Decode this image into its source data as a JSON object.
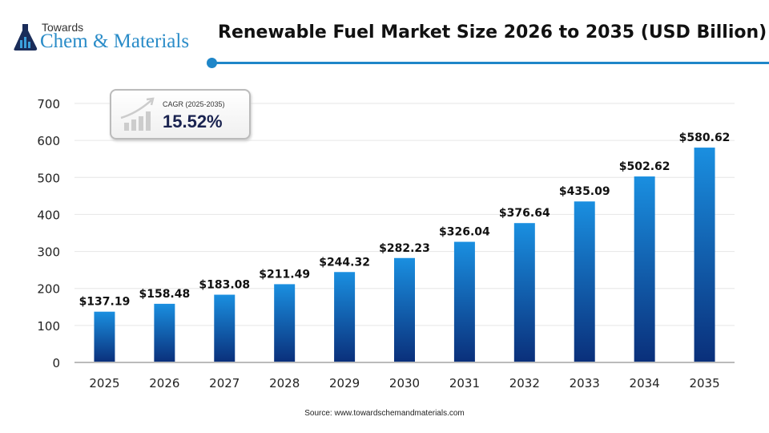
{
  "logo": {
    "top": "Towards",
    "main": "Chem & Materials"
  },
  "title": "Renewable Fuel Market Size 2026 to 2035 (USD Billion)",
  "cagr": {
    "label": "CAGR (2025-2035)",
    "value": "15.52%"
  },
  "source": "Source: www.towardschemandmaterials.com",
  "colors": {
    "bar_top": "#1a8fe0",
    "bar_bottom": "#0a2f7a",
    "accent": "#1f86c8"
  },
  "chart_data": {
    "type": "bar",
    "categories": [
      "2025",
      "2026",
      "2027",
      "2028",
      "2029",
      "2030",
      "2031",
      "2032",
      "2033",
      "2034",
      "2035"
    ],
    "values": [
      137.19,
      158.48,
      183.08,
      211.49,
      244.32,
      282.23,
      326.04,
      376.64,
      435.09,
      502.62,
      580.62
    ],
    "data_labels": [
      "$137.19",
      "$158.48",
      "$183.08",
      "$211.49",
      "$244.32",
      "$282.23",
      "$326.04",
      "$376.64",
      "$435.09",
      "$502.62",
      "$580.62"
    ],
    "ylim": [
      0,
      700
    ],
    "yticks": [
      0,
      100,
      200,
      300,
      400,
      500,
      600,
      700
    ],
    "grid": true,
    "title": "Renewable Fuel Market Size 2026 to 2035 (USD Billion)"
  }
}
